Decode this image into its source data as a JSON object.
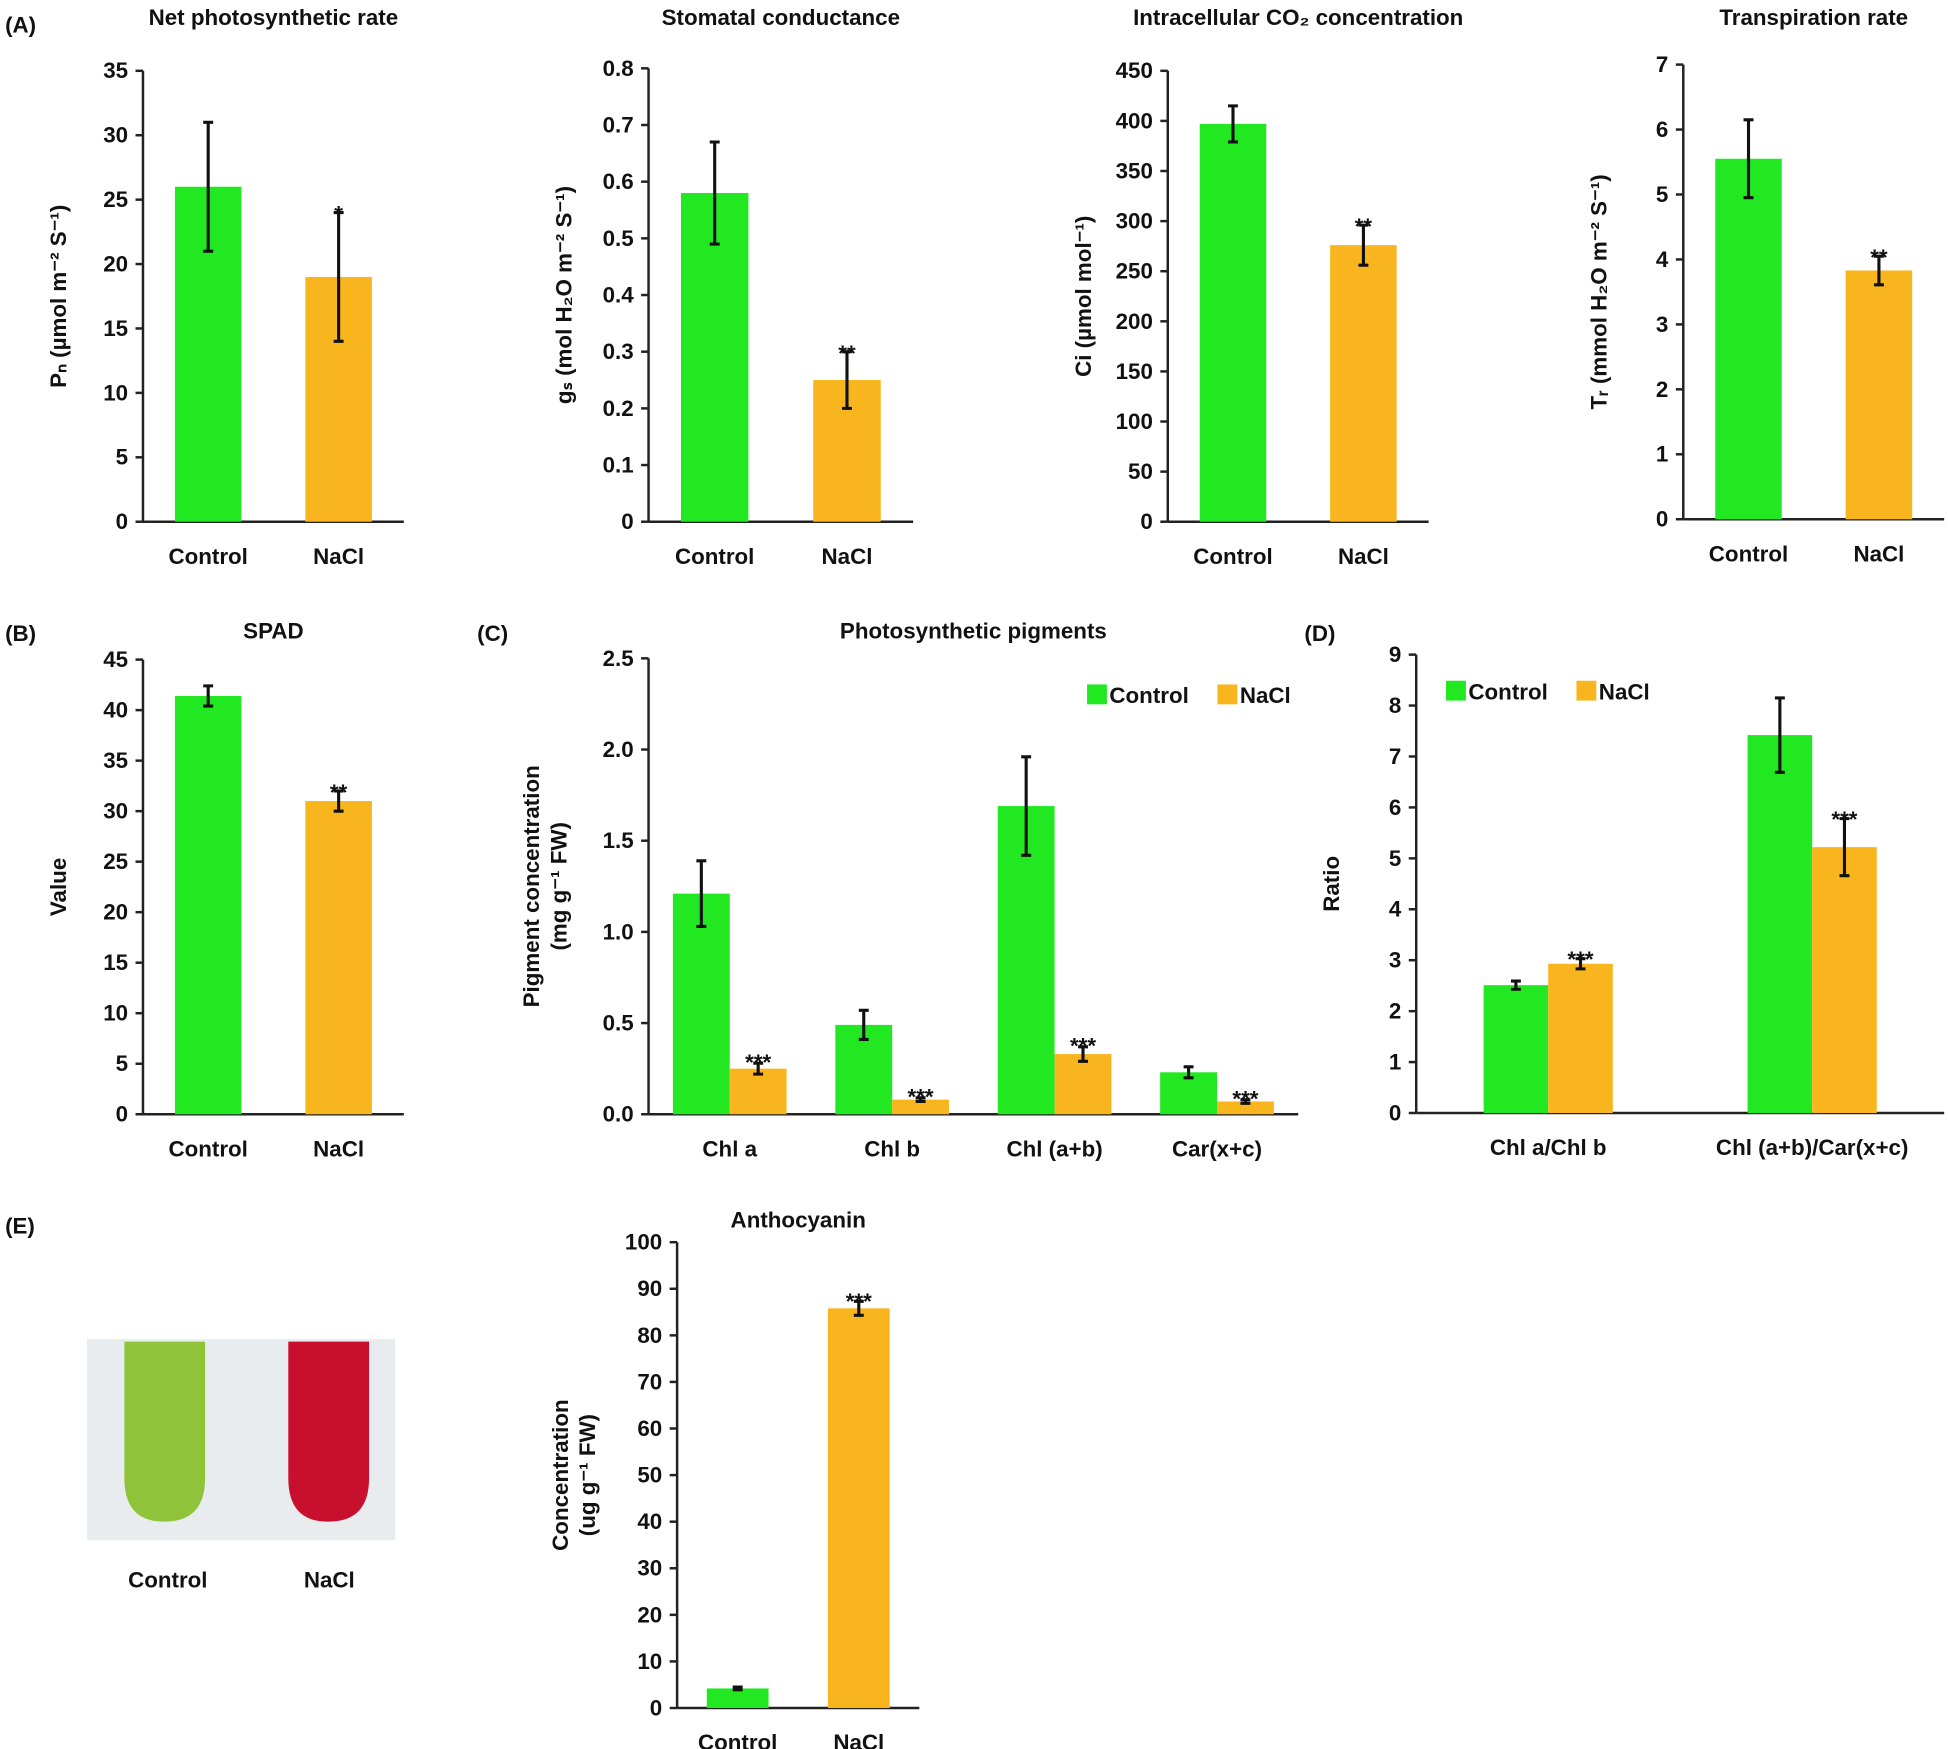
{
  "panel_labels": [
    "(A)",
    "(B)",
    "(C)",
    "(D)",
    "(E)"
  ],
  "photo": {
    "labels": [
      "Control",
      "NaCl"
    ]
  },
  "chart_data": [
    {
      "type": "bar",
      "title": "Net photosynthetic rate",
      "ylabel": [
        "Pₙ (µmol m⁻² S⁻¹)"
      ],
      "categories": [
        "Control",
        "NaCl"
      ],
      "colors": [
        "#22e822",
        "#f9b51d"
      ],
      "values": [
        26,
        19
      ],
      "errors": [
        5,
        5
      ],
      "significance": [
        null,
        "*"
      ],
      "ylim": [
        0,
        35
      ],
      "yticks": [
        0,
        5,
        10,
        15,
        20,
        25,
        30,
        35
      ]
    },
    {
      "type": "bar",
      "title": "Stomatal conductance",
      "ylabel": [
        "gₛ (mol H₂O m⁻² S⁻¹)"
      ],
      "categories": [
        "Control",
        "NaCl"
      ],
      "colors": [
        "#22e822",
        "#f9b51d"
      ],
      "values": [
        0.58,
        0.25
      ],
      "errors": [
        0.09,
        0.05
      ],
      "significance": [
        null,
        "**"
      ],
      "ylim": [
        0,
        0.8
      ],
      "yticks": [
        0,
        0.1,
        0.2,
        0.3,
        0.4,
        0.5,
        0.6,
        0.7,
        0.8
      ]
    },
    {
      "type": "bar",
      "title": "Intracellular CO₂ concentration",
      "ylabel": [
        "Ci (µmol mol⁻¹)"
      ],
      "categories": [
        "Control",
        "NaCl"
      ],
      "colors": [
        "#22e822",
        "#f9b51d"
      ],
      "values": [
        397,
        276
      ],
      "errors": [
        18,
        20
      ],
      "significance": [
        null,
        "**"
      ],
      "ylim": [
        0,
        450
      ],
      "yticks": [
        0,
        50,
        100,
        150,
        200,
        250,
        300,
        350,
        400,
        450
      ]
    },
    {
      "type": "bar",
      "title": "Transpiration rate",
      "ylabel": [
        "Tᵣ (mmol H₂O m⁻² S⁻¹)"
      ],
      "categories": [
        "Control",
        "NaCl"
      ],
      "colors": [
        "#22e822",
        "#f9b51d"
      ],
      "values": [
        5.55,
        3.83
      ],
      "errors": [
        0.6,
        0.22
      ],
      "significance": [
        null,
        "**"
      ],
      "ylim": [
        0,
        7
      ],
      "yticks": [
        0,
        1,
        2,
        3,
        4,
        5,
        6,
        7
      ]
    },
    {
      "type": "bar",
      "title": "SPAD",
      "ylabel": [
        "Value"
      ],
      "categories": [
        "Control",
        "NaCl"
      ],
      "colors": [
        "#22e822",
        "#f9b51d"
      ],
      "values": [
        41.4,
        31
      ],
      "errors": [
        1.0,
        1.0
      ],
      "significance": [
        null,
        "**"
      ],
      "ylim": [
        0,
        45
      ],
      "yticks": [
        0,
        5,
        10,
        15,
        20,
        25,
        30,
        35,
        40,
        45
      ]
    },
    {
      "type": "bar",
      "title": "Photosynthetic pigments",
      "ylabel": [
        "Pigment concentration",
        "(mg g⁻¹ FW)"
      ],
      "categories": [
        "Chl a",
        "Chl b",
        "Chl (a+b)",
        "Car(x+c)"
      ],
      "legend": "upper right",
      "series": [
        {
          "name": "Control",
          "color": "#22e822",
          "values": [
            1.21,
            0.49,
            1.69,
            0.23
          ],
          "errors": [
            0.18,
            0.08,
            0.27,
            0.03
          ]
        },
        {
          "name": "NaCl",
          "color": "#f9b51d",
          "values": [
            0.25,
            0.08,
            0.33,
            0.07
          ],
          "errors": [
            0.03,
            0.01,
            0.04,
            0.01
          ],
          "significance": [
            "***",
            "***",
            "***",
            "***"
          ]
        }
      ],
      "ylim": [
        0,
        2.5
      ],
      "yticks": [
        {
          "value": 0,
          "label": "0.0"
        },
        0.5,
        {
          "value": 1,
          "label": "1.0"
        },
        1.5,
        {
          "value": 2,
          "label": "2.0"
        },
        2.5
      ]
    },
    {
      "type": "bar",
      "title": null,
      "ylabel": [
        "Ratio"
      ],
      "categories": [
        "Chl a/Chl b",
        "Chl (a+b)/Car(x+c)"
      ],
      "legend": "upper left",
      "series": [
        {
          "name": "Control",
          "color": "#22e822",
          "values": [
            2.51,
            7.42
          ],
          "errors": [
            0.08,
            0.73
          ]
        },
        {
          "name": "NaCl",
          "color": "#f9b51d",
          "values": [
            2.93,
            5.22
          ],
          "errors": [
            0.1,
            0.56
          ],
          "significance": [
            "***",
            "***"
          ]
        }
      ],
      "ylim": [
        0,
        9
      ],
      "yticks": [
        0,
        1,
        2,
        3,
        4,
        5,
        6,
        7,
        8,
        9
      ]
    },
    {
      "type": "bar",
      "title": "Anthocyanin",
      "ylabel": [
        "Concentration",
        "(ug g⁻¹ FW)"
      ],
      "categories": [
        "Control",
        "NaCl"
      ],
      "colors": [
        "#22e822",
        "#f9b51d"
      ],
      "values": [
        4.2,
        85.8
      ],
      "errors": [
        0.3,
        1.5
      ],
      "significance": [
        null,
        "***"
      ],
      "ylim": [
        0,
        100
      ],
      "yticks": [
        0,
        10,
        20,
        30,
        40,
        50,
        60,
        70,
        80,
        90,
        100
      ]
    }
  ]
}
